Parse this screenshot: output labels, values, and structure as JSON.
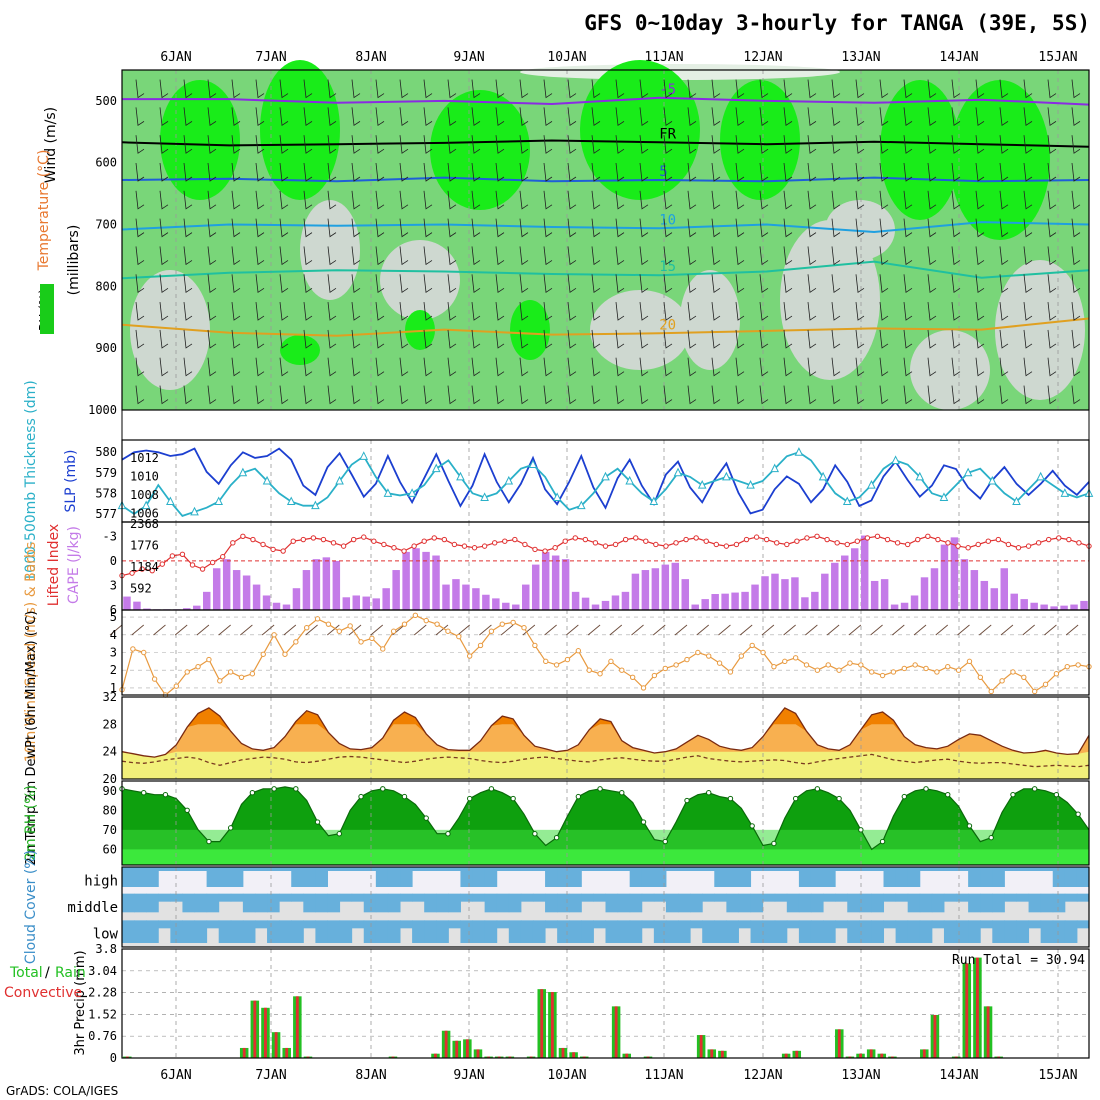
{
  "chart_data": {
    "type": "meteogram",
    "title": "GFS 0~10day 3-hourly for TANGA (39E, 5S)",
    "footer": "GrADS: COLA/IGES",
    "x_labels": [
      "6JAN",
      "7JAN",
      "8JAN",
      "9JAN",
      "10JAN",
      "11JAN",
      "12JAN",
      "13JAN",
      "14JAN",
      "15JAN"
    ],
    "panels": [
      {
        "id": "upper_air",
        "type": "heatmap",
        "labels": [
          "Wind (m/s)",
          "Temperature (°C)",
          "RH (%)"
        ],
        "ylabel": "(millibars)",
        "y_ticks": [
          "500",
          "600",
          "700",
          "800",
          "900",
          "1000"
        ],
        "ylim": [
          450,
          1000
        ],
        "contours": [
          {
            "label": "-5",
            "color": "#8a2be2",
            "level_mb": [
              497,
              497,
              503,
              500,
              505,
              495,
              500,
              503,
              498,
              506
            ]
          },
          {
            "label": "FR",
            "color": "#000000",
            "level_mb": [
              567,
              572,
              570,
              568,
              564,
              567,
              570,
              566,
              570,
              574
            ]
          },
          {
            "label": "5",
            "color": "#1e5fd8",
            "level_mb": [
              628,
              626,
              630,
              624,
              630,
              628,
              630,
              624,
              630,
              628
            ]
          },
          {
            "label": "10",
            "color": "#1fa0e0",
            "level_mb": [
              708,
              700,
              702,
              700,
              704,
              706,
              700,
              712,
              696,
              700
            ]
          },
          {
            "label": "15",
            "color": "#1fc0a0",
            "level_mb": [
              787,
              778,
              774,
              776,
              780,
              782,
              776,
              760,
              786,
              774
            ]
          },
          {
            "label": "20",
            "color": "#e0a020",
            "level_mb": [
              862,
              875,
              880,
              870,
              878,
              876,
              872,
              868,
              870,
              852
            ]
          }
        ]
      },
      {
        "id": "slp_thickness",
        "type": "line",
        "left_label": "1000-500mb Thickness (dm)",
        "right_label": "SLP (mb)",
        "left_ticks": [
          "580",
          "579",
          "578",
          "577"
        ],
        "right_ticks": [
          "1012",
          "1010",
          "1008",
          "1006"
        ],
        "series": [
          {
            "name": "SLP",
            "color": "#1c3fd0",
            "ylim": [
              1005.5,
              1013.5
            ],
            "values": [
              1011.8,
              1012.6,
              1012.8,
              1012.6,
              1012.2,
              1012.4,
              1013.0,
              1010.5,
              1009.2,
              1011.2,
              1012.6,
              1012.0,
              1012.2,
              1013.0,
              1011.8,
              1009.0,
              1008.0,
              1011.0,
              1012.5,
              1010.2,
              1007.8,
              1009.2,
              1012.2,
              1009.4,
              1007.2,
              1009.8,
              1012.4,
              1009.5,
              1006.8,
              1009.0,
              1012.4,
              1009.4,
              1007.2,
              1009.2,
              1012.0,
              1008.6,
              1007.0,
              1009.4,
              1012.2,
              1008.8,
              1006.6,
              1009.8,
              1011.8,
              1009.0,
              1007.0,
              1010.2,
              1011.6,
              1008.8,
              1007.2,
              1009.6,
              1011.4,
              1008.2,
              1006.0,
              1006.4,
              1008.6,
              1010.0,
              1009.2,
              1007.2,
              1008.6,
              1011.2,
              1009.4,
              1006.8,
              1007.4,
              1010.0,
              1011.6,
              1009.6,
              1007.8,
              1009.0,
              1011.2,
              1010.8,
              1008.8,
              1007.6,
              1009.6,
              1011.0,
              1009.2,
              1008.0,
              1009.2,
              1010.6,
              1009.0,
              1008.0,
              1009.4
            ]
          },
          {
            "name": "Thickness",
            "color": "#2ab0c8",
            "marker": "triangle",
            "ylim": [
              576.8,
              580.4
            ],
            "values": [
              577.4,
              577.0,
              577.4,
              578.4,
              577.6,
              576.9,
              577.1,
              577.3,
              577.6,
              578.4,
              579.0,
              579.2,
              578.6,
              578.0,
              577.6,
              577.4,
              577.4,
              577.8,
              578.6,
              579.4,
              579.8,
              578.8,
              578.0,
              577.9,
              578.0,
              578.4,
              579.2,
              579.6,
              578.8,
              578.0,
              577.8,
              578.0,
              578.6,
              579.2,
              579.4,
              578.8,
              577.8,
              577.2,
              577.4,
              578.0,
              578.8,
              579.2,
              578.6,
              578.0,
              577.6,
              578.2,
              579.0,
              578.8,
              578.4,
              578.6,
              578.8,
              578.6,
              578.4,
              578.6,
              579.2,
              579.8,
              580.0,
              579.6,
              578.8,
              578.0,
              577.6,
              577.8,
              578.4,
              579.2,
              579.6,
              579.4,
              578.8,
              578.0,
              577.8,
              578.4,
              579.0,
              579.2,
              578.6,
              578.0,
              577.6,
              578.2,
              578.8,
              578.4,
              578.0,
              577.8,
              578.0
            ]
          }
        ]
      },
      {
        "id": "cape_li",
        "type": "bar",
        "left_label": "Lifted Index",
        "right_label": "CAPE (J/kg)",
        "cape_ticks": [
          "2368",
          "1776",
          "1184",
          "592"
        ],
        "li_ticks": [
          "-3",
          "0",
          "3",
          "6"
        ],
        "cape_ylim": [
          0,
          2368
        ],
        "li_ylim": [
          -4.5,
          6
        ],
        "cape_values": [
          370,
          230,
          40,
          20,
          20,
          20,
          50,
          120,
          500,
          1150,
          1400,
          1100,
          950,
          700,
          400,
          200,
          150,
          600,
          1100,
          1400,
          1450,
          1350,
          350,
          400,
          370,
          320,
          600,
          1100,
          1600,
          1700,
          1600,
          1500,
          700,
          850,
          700,
          600,
          420,
          320,
          200,
          150,
          700,
          1250,
          1600,
          1500,
          1400,
          500,
          340,
          150,
          250,
          400,
          500,
          1000,
          1100,
          1150,
          1250,
          1300,
          850,
          150,
          300,
          440,
          450,
          480,
          500,
          700,
          930,
          1000,
          850,
          900,
          350,
          500,
          1000,
          1300,
          1500,
          1700,
          2050,
          800,
          850,
          150,
          200,
          400,
          900,
          1150,
          1800,
          2000,
          1400,
          1100,
          800,
          600,
          1150,
          450,
          300,
          200,
          150,
          100,
          120,
          150,
          250
        ],
        "li_values": [
          1.8,
          1.5,
          1.0,
          1.2,
          0.4,
          -0.6,
          -0.8,
          0.5,
          1.0,
          0.2,
          -0.5,
          -2.2,
          -3.0,
          -2.6,
          -2.0,
          -1.4,
          -1.2,
          -2.4,
          -2.6,
          -2.8,
          -2.6,
          -2.2,
          -1.8,
          -2.6,
          -2.9,
          -2.4,
          -2.0,
          -1.6,
          -1.2,
          -1.8,
          -2.4,
          -2.8,
          -2.6,
          -2.0,
          -1.8,
          -1.6,
          -1.8,
          -2.2,
          -2.4,
          -2.6,
          -2.0,
          -1.4,
          -1.2,
          -1.6,
          -2.4,
          -2.8,
          -2.6,
          -2.2,
          -1.8,
          -2.0,
          -2.6,
          -2.8,
          -2.4,
          -2.0,
          -1.8,
          -2.2,
          -2.6,
          -2.8,
          -2.4,
          -2.0,
          -1.8,
          -2.0,
          -2.6,
          -2.9,
          -2.6,
          -2.2,
          -2.0,
          -2.4,
          -2.8,
          -3.0,
          -2.6,
          -2.2,
          -2.0,
          -2.4,
          -2.8,
          -3.0,
          -2.6,
          -2.2,
          -2.0,
          -2.6,
          -3.0,
          -2.6,
          -2.2,
          -1.8,
          -1.6,
          -2.0,
          -2.4,
          -2.6,
          -2.0,
          -1.6,
          -1.8,
          -2.2,
          -2.6,
          -2.8,
          -2.6,
          -2.2,
          -1.8
        ]
      },
      {
        "id": "wind10m",
        "type": "line",
        "left_label": "10m Wind Speed (m/s) & Barbs",
        "y_ticks": [
          "1",
          "2",
          "3",
          "4",
          "5"
        ],
        "ylim": [
          0.6,
          5.4
        ],
        "values": [
          0.9,
          3.2,
          3.0,
          1.5,
          0.6,
          1.1,
          1.9,
          2.2,
          2.6,
          1.4,
          1.9,
          1.6,
          1.8,
          2.9,
          4.0,
          2.9,
          3.6,
          4.4,
          4.9,
          4.6,
          4.2,
          4.5,
          3.6,
          3.8,
          3.2,
          4.2,
          4.6,
          5.1,
          4.8,
          4.6,
          4.2,
          3.9,
          2.8,
          3.4,
          4.2,
          4.6,
          4.7,
          4.4,
          3.4,
          2.5,
          2.3,
          2.6,
          3.1,
          2.0,
          1.8,
          2.5,
          2.0,
          1.6,
          1.0,
          1.7,
          2.1,
          2.3,
          2.6,
          3.0,
          2.8,
          2.4,
          1.9,
          2.8,
          3.4,
          3.0,
          2.2,
          2.5,
          2.7,
          2.3,
          2.0,
          2.3,
          2.0,
          2.4,
          2.3,
          1.9,
          1.7,
          1.9,
          2.1,
          2.3,
          2.1,
          1.9,
          2.2,
          2.0,
          2.5,
          1.6,
          0.8,
          1.4,
          1.9,
          1.6,
          0.8,
          1.2,
          1.8,
          2.2,
          2.3,
          2.2
        ]
      },
      {
        "id": "temp2m",
        "type": "area",
        "left_label": "2m Temp 2m DewPt (6hr Min/Max) (°C)",
        "y_ticks": [
          "20",
          "24",
          "28",
          "32"
        ],
        "ylim": [
          20,
          32
        ],
        "temp_values": [
          24.0,
          23.7,
          23.4,
          23.2,
          23.6,
          25.0,
          27.6,
          29.6,
          30.4,
          29.2,
          27.0,
          25.2,
          24.4,
          24.2,
          24.6,
          26.2,
          28.4,
          30.0,
          29.4,
          26.8,
          25.2,
          24.4,
          24.3,
          24.6,
          26.0,
          28.6,
          29.8,
          29.0,
          26.6,
          25.0,
          24.3,
          24.2,
          24.2,
          25.6,
          27.8,
          29.2,
          28.8,
          26.4,
          24.8,
          24.4,
          24.0,
          24.2,
          25.0,
          27.2,
          28.8,
          28.4,
          25.6,
          24.6,
          24.2,
          23.8,
          24.0,
          24.4,
          25.4,
          26.4,
          25.8,
          24.8,
          24.4,
          24.2,
          24.6,
          26.2,
          28.4,
          30.4,
          29.6,
          27.0,
          25.0,
          24.4,
          24.2,
          25.0,
          27.2,
          29.4,
          29.8,
          28.6,
          26.2,
          25.0,
          24.6,
          24.4,
          24.8,
          25.8,
          26.6,
          26.4,
          25.6,
          24.8,
          24.2,
          23.8,
          23.9,
          24.2,
          23.8,
          23.6,
          23.7,
          26.4
        ],
        "dewpt_values": [
          22.6,
          22.4,
          22.3,
          22.5,
          22.8,
          23.0,
          23.2,
          23.0,
          22.4,
          22.0,
          22.4,
          22.8,
          23.0,
          23.2,
          23.1,
          22.9,
          22.5,
          22.4,
          22.6,
          22.9,
          23.2,
          23.3,
          23.2,
          23.0,
          22.8,
          22.6,
          22.4,
          22.6,
          22.9,
          23.1,
          23.2,
          23.1,
          23.0,
          22.7,
          22.5,
          22.4,
          22.6,
          22.9,
          23.1,
          23.2,
          23.0,
          22.8,
          22.6,
          22.5,
          22.8,
          23.0,
          23.1,
          22.9,
          22.7,
          22.6,
          22.6,
          22.9,
          23.2,
          23.4,
          23.0,
          22.8,
          22.6,
          22.5,
          22.6,
          22.7,
          22.8,
          22.7,
          22.4,
          22.2,
          22.5,
          22.8,
          23.0,
          23.2,
          23.4,
          23.6,
          23.2,
          22.8,
          22.6,
          22.4,
          22.6,
          22.8,
          22.9,
          22.6,
          22.4,
          22.3,
          22.4,
          22.4,
          22.2,
          22.0,
          21.8,
          21.9,
          22.0,
          21.9,
          21.8,
          22.0
        ]
      },
      {
        "id": "rh2m",
        "type": "area",
        "left_label": "2m RH (%)",
        "y_ticks": [
          "60",
          "70",
          "80",
          "90"
        ],
        "ylim": [
          52,
          95
        ],
        "values": [
          91,
          90,
          89,
          88,
          88,
          86,
          80,
          70,
          64,
          64,
          71,
          83,
          89,
          91,
          91,
          92,
          91,
          85,
          74,
          67,
          68,
          80,
          87,
          90,
          91,
          90,
          87,
          83,
          76,
          68,
          68,
          76,
          86,
          89,
          91,
          89,
          86,
          78,
          68,
          62,
          66,
          77,
          87,
          90,
          91,
          90,
          89,
          84,
          74,
          65,
          64,
          74,
          85,
          88,
          89,
          87,
          86,
          81,
          72,
          62,
          63,
          76,
          86,
          90,
          91,
          89,
          86,
          80,
          70,
          60,
          64,
          77,
          87,
          90,
          91,
          90,
          88,
          82,
          72,
          64,
          66,
          79,
          88,
          91,
          91,
          90,
          88,
          84,
          78,
          70
        ]
      },
      {
        "id": "cloud",
        "type": "bar",
        "left_label": "Cloud Cover (%)",
        "tiers": [
          "high",
          "middle",
          "low"
        ]
      },
      {
        "id": "precip",
        "type": "bar",
        "left_label": "3hr Precip (mm)",
        "legend_total": "Total",
        "legend_rain": "Rain",
        "legend_conv": "Convective",
        "run_total": "Run Total = 30.94",
        "y_ticks": [
          "3.8",
          "3.04",
          "2.28",
          "1.52",
          "0.76",
          "0"
        ],
        "ylim": [
          0,
          3.8
        ],
        "total": [
          0.05,
          0,
          0,
          0,
          0,
          0,
          0,
          0,
          0,
          0,
          0,
          0.35,
          2.0,
          1.75,
          0.9,
          0.35,
          2.15,
          0.05,
          0,
          0,
          0,
          0,
          0,
          0,
          0,
          0.05,
          0,
          0,
          0,
          0.15,
          0.95,
          0.6,
          0.65,
          0.3,
          0.05,
          0.05,
          0.05,
          0,
          0.05,
          2.4,
          2.3,
          0.35,
          0.2,
          0.05,
          0,
          0,
          1.8,
          0.15,
          0,
          0.05,
          0,
          0,
          0,
          0,
          0.8,
          0.3,
          0.25,
          0,
          0,
          0,
          0,
          0,
          0.15,
          0.25,
          0,
          0,
          0,
          1.0,
          0.05,
          0.15,
          0.3,
          0.15,
          0.05,
          0,
          0,
          0.3,
          1.5,
          0,
          0.05,
          3.3,
          3.5,
          1.8,
          0.05,
          0,
          0,
          0,
          0,
          0,
          0,
          0,
          0
        ]
      }
    ]
  }
}
